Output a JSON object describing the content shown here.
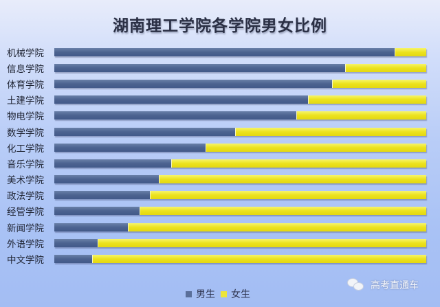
{
  "chart_data": {
    "type": "bar",
    "orientation": "horizontal",
    "stacked": true,
    "percent_stacked": true,
    "title": "湖南理工学院各学院男女比例",
    "xlabel": "",
    "ylabel": "",
    "xlim": [
      0,
      100
    ],
    "grid": false,
    "legend_position": "bottom",
    "categories": [
      "机械学院",
      "信息学院",
      "体育学院",
      "土建学院",
      "物电学院",
      "数学学院",
      "化工学院",
      "音乐学院",
      "美术学院",
      "政法学院",
      "经管学院",
      "新闻学院",
      "外语学院",
      "中文学院"
    ],
    "series": [
      {
        "name": "男生",
        "color": "#4c6390",
        "values": [
          91.5,
          78.2,
          74.7,
          68.2,
          65.1,
          48.6,
          40.7,
          31.4,
          28.1,
          25.7,
          22.9,
          19.8,
          11.6,
          10.2
        ]
      },
      {
        "name": "女生",
        "color": "#ece21e",
        "values": [
          8.5,
          21.8,
          25.3,
          31.8,
          34.9,
          51.4,
          59.3,
          68.6,
          71.9,
          74.3,
          77.1,
          80.2,
          88.4,
          89.8
        ]
      }
    ]
  },
  "title": "湖南理工学院各学院男女比例",
  "rows": [
    {
      "label": "机械学院",
      "male": "91.5%",
      "female": "8.5%"
    },
    {
      "label": "信息学院",
      "male": "78.2%",
      "female": "21.8%"
    },
    {
      "label": "体育学院",
      "male": "74.7%",
      "female": "25.3%"
    },
    {
      "label": "土建学院",
      "male": "68.2%",
      "female": "31.8%"
    },
    {
      "label": "物电学院",
      "male": "65.1%",
      "female": "34.9%"
    },
    {
      "label": "数学学院",
      "male": "48.6%",
      "female": "51.4%"
    },
    {
      "label": "化工学院",
      "male": "40.7%",
      "female": "59.3%"
    },
    {
      "label": "音乐学院",
      "male": "31.4%",
      "female": "68.6%"
    },
    {
      "label": "美术学院",
      "male": "28.1%",
      "female": "71.9%"
    },
    {
      "label": "政法学院",
      "male": "25.7%",
      "female": "74.3%"
    },
    {
      "label": "经管学院",
      "male": "22.9%",
      "female": "77.1%"
    },
    {
      "label": "新闻学院",
      "male": "19.8%",
      "female": "80.2%"
    },
    {
      "label": "外语学院",
      "male": "11.6%",
      "female": "88.4%"
    },
    {
      "label": "中文学院",
      "male": "10.2%",
      "female": "89.8%"
    }
  ],
  "legend": {
    "male_label": "男生",
    "female_label": "女生",
    "male_color": "#5a6f9a",
    "female_color": "#ece53a"
  },
  "watermark": {
    "icon": "wechat-icon",
    "text": "高考直通车"
  }
}
